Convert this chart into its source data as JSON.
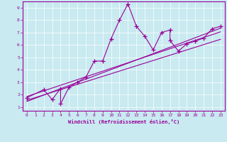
{
  "xlabel": "Windchill (Refroidissement éolien,°C)",
  "bg_color": "#c8eaf0",
  "line_color": "#990099",
  "grid_color": "#ffffff",
  "xlim": [
    -0.5,
    23.5
  ],
  "ylim": [
    0.7,
    9.5
  ],
  "xticks": [
    0,
    1,
    2,
    3,
    4,
    5,
    6,
    7,
    8,
    9,
    10,
    11,
    12,
    13,
    14,
    15,
    16,
    17,
    18,
    19,
    20,
    21,
    22,
    23
  ],
  "yticks": [
    1,
    2,
    3,
    4,
    5,
    6,
    7,
    8,
    9
  ],
  "series1_x": [
    0,
    2,
    3,
    4,
    4,
    5,
    6,
    7,
    8,
    9,
    10,
    11,
    12,
    13,
    14,
    15,
    16,
    17,
    17,
    18,
    19,
    20,
    21,
    22,
    23
  ],
  "series1_y": [
    1.75,
    2.4,
    1.6,
    2.5,
    1.25,
    2.6,
    3.0,
    3.4,
    4.7,
    4.7,
    6.5,
    8.0,
    9.3,
    7.5,
    6.7,
    5.6,
    7.0,
    7.2,
    6.35,
    5.5,
    6.1,
    6.3,
    6.55,
    7.3,
    7.5
  ],
  "series2_x": [
    0,
    23
  ],
  "series2_y": [
    1.55,
    6.45
  ],
  "series3_x": [
    0,
    23
  ],
  "series3_y": [
    1.85,
    7.05
  ],
  "series4_x": [
    0,
    23
  ],
  "series4_y": [
    1.45,
    7.35
  ]
}
